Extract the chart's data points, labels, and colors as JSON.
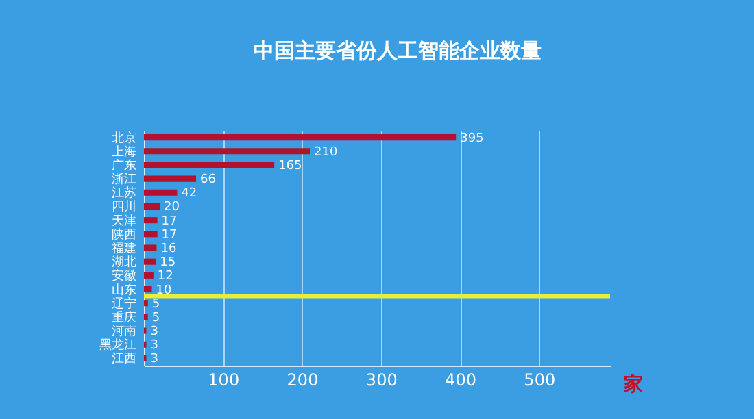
{
  "chart_data": {
    "type": "bar",
    "orientation": "horizontal",
    "title": "中国主要省份人工智能企业数量",
    "xlabel": "家",
    "categories": [
      "北京",
      "上海",
      "广东",
      "浙江",
      "江苏",
      "四川",
      "天津",
      "陕西",
      "福建",
      "湖北",
      "安徽",
      "山东",
      "辽宁",
      "重庆",
      "河南",
      "黑龙江",
      "江西"
    ],
    "values": [
      395,
      210,
      165,
      66,
      42,
      20,
      17,
      17,
      16,
      15,
      12,
      10,
      5,
      5,
      3,
      3,
      3
    ],
    "color": "#b3122e",
    "data_labels": true,
    "xlim": [
      0,
      590
    ],
    "xticks": [
      100,
      200,
      300,
      400,
      500
    ],
    "grid": "x",
    "ref_lines": [
      {
        "axis": "y",
        "value": "山东",
        "color": "#e8ef3a"
      }
    ]
  }
}
